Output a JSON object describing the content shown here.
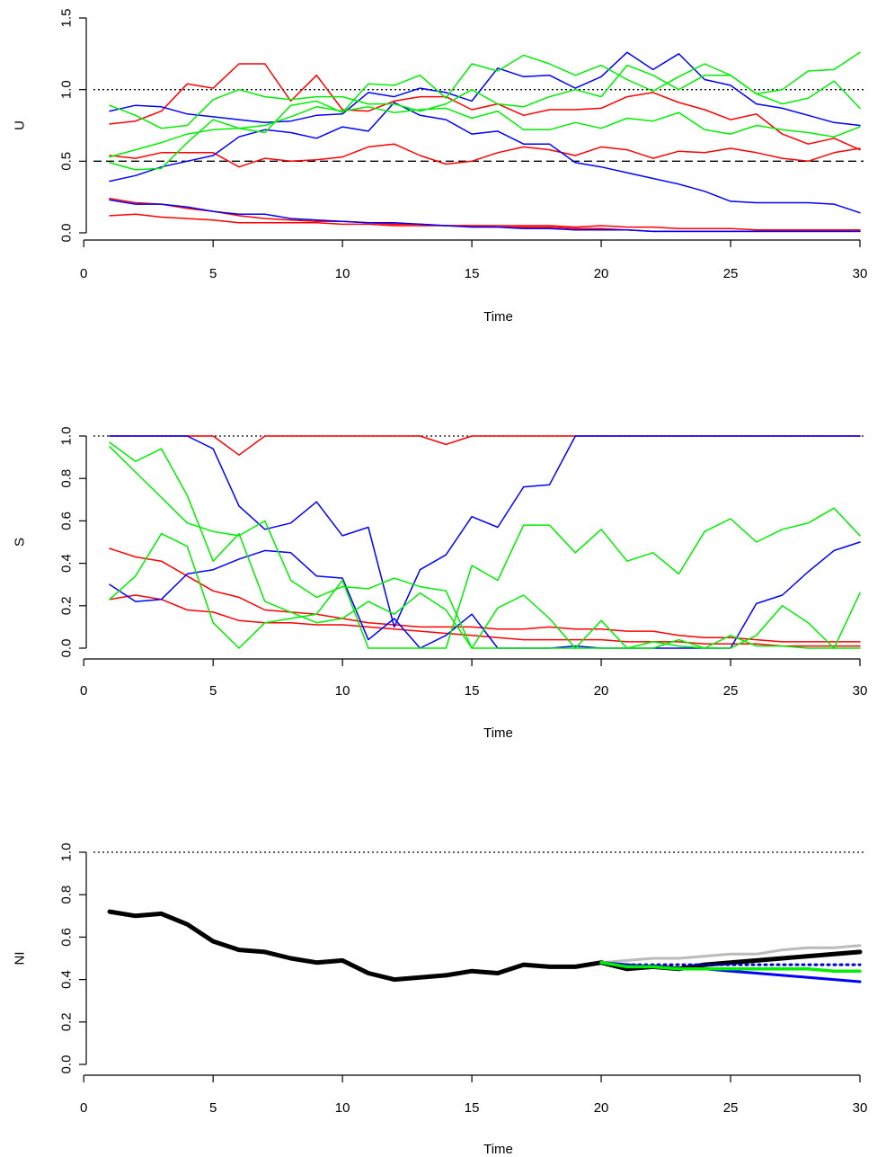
{
  "chart_data": [
    {
      "type": "line",
      "ylabel": "U",
      "xlabel": "Time",
      "xlim": [
        1,
        30
      ],
      "ylim": [
        0,
        1.5
      ],
      "xticks": [
        "0",
        "5",
        "10",
        "15",
        "20",
        "25",
        "30"
      ],
      "yticks": [
        "0.0",
        "0.5",
        "1.0",
        "1.5"
      ],
      "reference_lines": [
        {
          "y": 1.0,
          "style": "dotted",
          "color": "#000000"
        },
        {
          "y": 0.5,
          "style": "dashed",
          "color": "#000000"
        }
      ],
      "series": [
        {
          "color": "#ff0000",
          "values": [
            0.76,
            0.78,
            0.85,
            1.04,
            1.01,
            1.18,
            1.18,
            0.92,
            1.1,
            0.86,
            0.85,
            0.92,
            0.95,
            0.95,
            0.86,
            0.9,
            0.82,
            0.86,
            0.86,
            0.87,
            0.95,
            0.98,
            0.91,
            0.86,
            0.79,
            0.83,
            0.69,
            0.62,
            0.66,
            0.58
          ]
        },
        {
          "color": "#ff0000",
          "values": [
            0.54,
            0.52,
            0.56,
            0.56,
            0.56,
            0.46,
            0.52,
            0.5,
            0.51,
            0.53,
            0.6,
            0.62,
            0.54,
            0.48,
            0.5,
            0.56,
            0.6,
            0.58,
            0.54,
            0.6,
            0.58,
            0.52,
            0.57,
            0.56,
            0.59,
            0.56,
            0.52,
            0.5,
            0.56,
            0.59
          ]
        },
        {
          "color": "#ff0000",
          "values": [
            0.24,
            0.21,
            0.2,
            0.17,
            0.15,
            0.12,
            0.1,
            0.09,
            0.08,
            0.08,
            0.07,
            0.06,
            0.06,
            0.05,
            0.05,
            0.04,
            0.04,
            0.04,
            0.03,
            0.03,
            0.02,
            0.01,
            0.01,
            0.01,
            0.01,
            0.01,
            0.01,
            0.01,
            0.01,
            0.01
          ]
        },
        {
          "color": "#ff0000",
          "values": [
            0.12,
            0.13,
            0.11,
            0.1,
            0.09,
            0.07,
            0.07,
            0.07,
            0.07,
            0.06,
            0.06,
            0.05,
            0.05,
            0.05,
            0.05,
            0.05,
            0.05,
            0.05,
            0.04,
            0.05,
            0.04,
            0.04,
            0.03,
            0.03,
            0.03,
            0.02,
            0.02,
            0.02,
            0.02,
            0.02
          ]
        },
        {
          "color": "#0000ff",
          "values": [
            0.85,
            0.89,
            0.88,
            0.83,
            0.81,
            0.79,
            0.77,
            0.78,
            0.82,
            0.83,
            0.98,
            0.95,
            1.01,
            0.98,
            0.92,
            1.15,
            1.09,
            1.1,
            1.01,
            1.09,
            1.26,
            1.14,
            1.25,
            1.07,
            1.03,
            0.9,
            0.87,
            0.82,
            0.77,
            0.75
          ]
        },
        {
          "color": "#0000ff",
          "values": [
            0.36,
            0.4,
            0.46,
            0.5,
            0.54,
            0.67,
            0.72,
            0.7,
            0.66,
            0.74,
            0.71,
            0.91,
            0.82,
            0.79,
            0.69,
            0.71,
            0.62,
            0.62,
            0.49,
            0.46,
            0.42,
            0.38,
            0.34,
            0.29,
            0.22,
            0.21,
            0.21,
            0.21,
            0.2,
            0.14
          ]
        },
        {
          "color": "#0000ff",
          "values": [
            0.23,
            0.2,
            0.2,
            0.18,
            0.15,
            0.13,
            0.13,
            0.1,
            0.09,
            0.08,
            0.07,
            0.07,
            0.06,
            0.05,
            0.04,
            0.04,
            0.03,
            0.03,
            0.02,
            0.02,
            0.02,
            0.01,
            0.01,
            0.01,
            0.01,
            0.01,
            0.01,
            0.01,
            0.01,
            0.01
          ]
        },
        {
          "color": "#00ee00",
          "values": [
            0.89,
            0.82,
            0.73,
            0.75,
            0.93,
            1.0,
            0.95,
            0.93,
            0.95,
            0.95,
            0.9,
            0.9,
            0.85,
            0.9,
            1.0,
            0.9,
            0.88,
            0.95,
            1.0,
            0.95,
            1.17,
            1.1,
            1.0,
            1.1,
            1.1,
            0.97,
            0.9,
            0.94,
            1.06,
            0.87
          ]
        },
        {
          "color": "#00ee00",
          "values": [
            0.53,
            0.58,
            0.63,
            0.69,
            0.72,
            0.73,
            0.7,
            0.89,
            0.92,
            0.84,
            1.04,
            1.03,
            1.1,
            0.94,
            1.18,
            1.13,
            1.24,
            1.18,
            1.1,
            1.17,
            1.07,
            0.99,
            1.09,
            1.18,
            1.1,
            0.97,
            1.0,
            1.13,
            1.14,
            1.26
          ]
        },
        {
          "color": "#00ee00",
          "values": [
            0.49,
            0.44,
            0.45,
            0.63,
            0.79,
            0.73,
            0.75,
            0.81,
            0.88,
            0.85,
            0.88,
            0.84,
            0.86,
            0.87,
            0.8,
            0.85,
            0.72,
            0.72,
            0.77,
            0.73,
            0.8,
            0.78,
            0.84,
            0.72,
            0.69,
            0.75,
            0.72,
            0.7,
            0.67,
            0.74
          ]
        }
      ]
    },
    {
      "type": "line",
      "ylabel": "S",
      "xlabel": "Time",
      "xlim": [
        1,
        30
      ],
      "ylim": [
        0,
        1.0
      ],
      "xticks": [
        "0",
        "5",
        "10",
        "15",
        "20",
        "25",
        "30"
      ],
      "yticks": [
        "0.0",
        "0.2",
        "0.4",
        "0.6",
        "0.8",
        "1.0"
      ],
      "reference_lines": [
        {
          "y": 1.0,
          "style": "dotted",
          "color": "#000000"
        }
      ],
      "series": [
        {
          "color": "#ff0000",
          "values": [
            1.0,
            1.0,
            1.0,
            1.0,
            1.0,
            0.91,
            1.0,
            1.0,
            1.0,
            1.0,
            1.0,
            1.0,
            1.0,
            0.96,
            1.0,
            1.0,
            1.0,
            1.0,
            1.0,
            1.0,
            1.0,
            1.0,
            1.0,
            1.0,
            1.0,
            1.0,
            1.0,
            1.0,
            1.0,
            1.0
          ]
        },
        {
          "color": "#ff0000",
          "values": [
            0.47,
            0.43,
            0.41,
            0.34,
            0.27,
            0.24,
            0.18,
            0.17,
            0.16,
            0.14,
            0.12,
            0.11,
            0.1,
            0.1,
            0.1,
            0.09,
            0.09,
            0.1,
            0.09,
            0.09,
            0.08,
            0.08,
            0.06,
            0.05,
            0.05,
            0.04,
            0.03,
            0.03,
            0.03,
            0.03
          ]
        },
        {
          "color": "#ff0000",
          "values": [
            0.23,
            0.25,
            0.23,
            0.18,
            0.17,
            0.13,
            0.12,
            0.12,
            0.11,
            0.11,
            0.1,
            0.09,
            0.08,
            0.07,
            0.06,
            0.05,
            0.04,
            0.04,
            0.04,
            0.04,
            0.03,
            0.03,
            0.03,
            0.02,
            0.02,
            0.02,
            0.01,
            0.01,
            0.01,
            0.01
          ]
        },
        {
          "color": "#0000ff",
          "values": [
            1.0,
            1.0,
            1.0,
            1.0,
            0.94,
            0.67,
            0.56,
            0.59,
            0.69,
            0.53,
            0.57,
            0.1,
            0.37,
            0.44,
            0.62,
            0.57,
            0.76,
            0.77,
            1.0,
            1.0,
            1.0,
            1.0,
            1.0,
            1.0,
            1.0,
            1.0,
            1.0,
            1.0,
            1.0,
            1.0
          ]
        },
        {
          "color": "#0000ff",
          "values": [
            0.3,
            0.22,
            0.23,
            0.35,
            0.37,
            0.42,
            0.46,
            0.45,
            0.34,
            0.33,
            0.04,
            0.14,
            0.0,
            0.06,
            0.16,
            0.0,
            0.0,
            0.0,
            0.01,
            0.0,
            0.0,
            0.0,
            0.0,
            0.0,
            0.0,
            0.21,
            0.25,
            0.36,
            0.46,
            0.5
          ]
        },
        {
          "color": "#00ee00",
          "values": [
            0.97,
            0.88,
            0.94,
            0.72,
            0.41,
            0.54,
            0.22,
            0.17,
            0.12,
            0.14,
            0.22,
            0.16,
            0.26,
            0.18,
            0.0,
            0.19,
            0.25,
            0.14,
            0.0,
            0.13,
            0.0,
            0.03,
            0.01,
            0.0,
            0.06,
            0.01,
            0.01,
            0.0,
            0.0,
            0.0
          ]
        },
        {
          "color": "#00ee00",
          "values": [
            0.95,
            0.83,
            0.71,
            0.59,
            0.55,
            0.53,
            0.6,
            0.32,
            0.24,
            0.29,
            0.28,
            0.33,
            0.29,
            0.27,
            0.0,
            0.0,
            0.0,
            0.0,
            0.0,
            0.0,
            0.0,
            0.0,
            0.04,
            0.0,
            0.0,
            0.06,
            0.2,
            0.12,
            0.0,
            0.26
          ]
        },
        {
          "color": "#00ee00",
          "values": [
            0.23,
            0.34,
            0.54,
            0.48,
            0.12,
            0.0,
            0.12,
            0.14,
            0.16,
            0.32,
            0.0,
            0.0,
            0.0,
            0.0,
            0.39,
            0.32,
            0.58,
            0.58,
            0.45,
            0.56,
            0.41,
            0.45,
            0.35,
            0.55,
            0.61,
            0.5,
            0.56,
            0.59,
            0.66,
            0.53
          ]
        }
      ]
    },
    {
      "type": "line",
      "ylabel": "NI",
      "xlabel": "Time",
      "xlim": [
        1,
        30
      ],
      "ylim": [
        0,
        1.0
      ],
      "xticks": [
        "0",
        "5",
        "10",
        "15",
        "20",
        "25",
        "30"
      ],
      "yticks": [
        "0.0",
        "0.2",
        "0.4",
        "0.6",
        "0.8",
        "1.0"
      ],
      "reference_lines": [
        {
          "y": 1.0,
          "style": "dotted",
          "color": "#000000"
        }
      ],
      "series": [
        {
          "color": "#000000",
          "width": 5,
          "x": [
            1,
            2,
            3,
            4,
            5,
            6,
            7,
            8,
            9,
            10,
            11,
            12,
            13,
            14,
            15,
            16,
            17,
            18,
            19,
            20,
            21,
            22,
            23,
            24,
            25,
            26,
            27,
            28,
            29,
            30
          ],
          "values": [
            0.72,
            0.7,
            0.71,
            0.66,
            0.58,
            0.54,
            0.53,
            0.5,
            0.48,
            0.49,
            0.43,
            0.4,
            0.41,
            0.42,
            0.44,
            0.43,
            0.47,
            0.46,
            0.46,
            0.48,
            0.45,
            0.46,
            0.45,
            0.47,
            0.48,
            0.49,
            0.5,
            0.51,
            0.52,
            0.53
          ]
        },
        {
          "color": "#bbbbbb",
          "width": 3,
          "x": [
            20,
            21,
            22,
            23,
            24,
            25,
            26,
            27,
            28,
            29,
            30
          ],
          "values": [
            0.48,
            0.49,
            0.5,
            0.5,
            0.51,
            0.52,
            0.52,
            0.54,
            0.55,
            0.55,
            0.56
          ]
        },
        {
          "color": "#0000ff",
          "width": 3,
          "x": [
            20,
            21,
            22,
            23,
            24,
            25,
            26,
            27,
            28,
            29,
            30
          ],
          "values": [
            0.48,
            0.47,
            0.46,
            0.45,
            0.45,
            0.44,
            0.43,
            0.42,
            0.41,
            0.4,
            0.39
          ]
        },
        {
          "color": "#0000cc",
          "width": 3,
          "dash": "dotted",
          "x": [
            20,
            21,
            22,
            23,
            24,
            25,
            26,
            27,
            28,
            29,
            30
          ],
          "values": [
            0.48,
            0.47,
            0.47,
            0.47,
            0.47,
            0.47,
            0.47,
            0.47,
            0.47,
            0.47,
            0.47
          ]
        },
        {
          "color": "#00ee00",
          "width": 3.5,
          "x": [
            20,
            21,
            22,
            23,
            24,
            25,
            26,
            27,
            28,
            29,
            30
          ],
          "values": [
            0.48,
            0.46,
            0.46,
            0.45,
            0.45,
            0.45,
            0.45,
            0.45,
            0.45,
            0.44,
            0.44
          ]
        }
      ]
    }
  ]
}
